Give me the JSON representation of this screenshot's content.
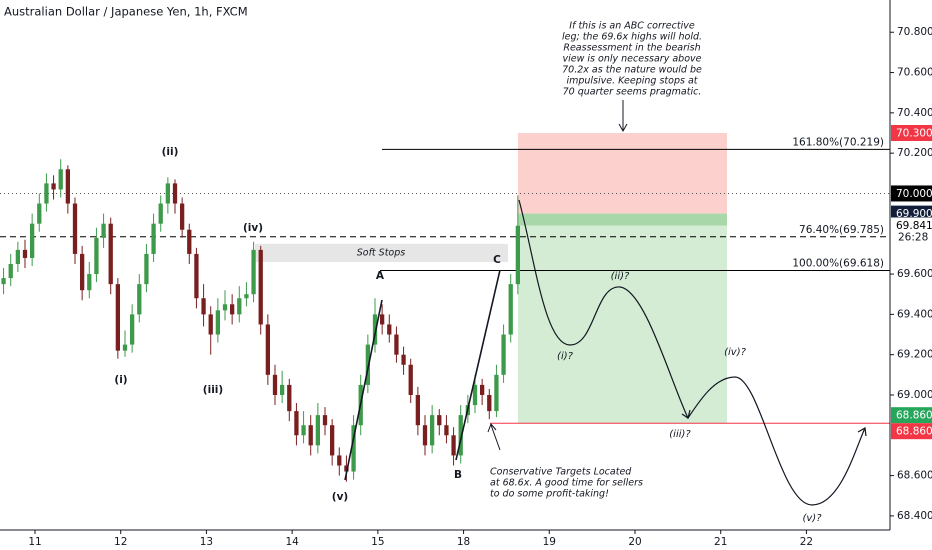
{
  "chart_data": {
    "type": "candlestick",
    "title": "Australian Dollar / Japanese Yen, 1h, FXCM",
    "up_color": "#3d9a4a",
    "down_color": "#7a1f1f",
    "grid": false,
    "xlim": [
      -0.5,
      124.1
    ],
    "ylim": [
      68.33,
      70.96
    ],
    "xticks": [
      {
        "value": 4.4,
        "label": "11"
      },
      {
        "value": 16.4,
        "label": "12"
      },
      {
        "value": 28.4,
        "label": "13"
      },
      {
        "value": 40.4,
        "label": "14"
      },
      {
        "value": 52.4,
        "label": "15"
      },
      {
        "value": 64.4,
        "label": "18"
      },
      {
        "value": 76.4,
        "label": "19"
      },
      {
        "value": 88.4,
        "label": "20"
      },
      {
        "value": 100.4,
        "label": "21"
      },
      {
        "value": 112.4,
        "label": "22"
      }
    ],
    "yticks": [
      {
        "value": 70.8,
        "label": "70.800"
      },
      {
        "value": 70.6,
        "label": "70.600"
      },
      {
        "value": 70.4,
        "label": "70.400"
      },
      {
        "value": 70.2,
        "label": "70.200"
      },
      {
        "value": 69.6,
        "label": "69.600"
      },
      {
        "value": 69.4,
        "label": "69.400"
      },
      {
        "value": 69.2,
        "label": "69.200"
      },
      {
        "value": 69.0,
        "label": "69.000"
      },
      {
        "value": 68.6,
        "label": "68.600"
      },
      {
        "value": 68.4,
        "label": "68.400"
      }
    ],
    "candles": {
      "open": [
        69.55,
        69.58,
        69.65,
        69.72,
        69.68,
        69.85,
        69.95,
        70.05,
        70.02,
        70.12,
        69.95,
        69.7,
        69.52,
        69.6,
        69.78,
        69.85,
        69.55,
        69.22,
        69.25,
        69.4,
        69.55,
        69.7,
        69.85,
        69.95,
        70.05,
        69.95,
        69.82,
        69.7,
        69.48,
        69.4,
        69.3,
        69.42,
        69.45,
        69.4,
        69.48,
        69.5,
        69.72,
        69.35,
        69.1,
        69.0,
        69.05,
        68.92,
        68.8,
        68.85,
        68.75,
        68.9,
        68.85,
        68.7,
        68.65,
        68.62,
        68.85,
        69.05,
        69.25,
        69.4,
        69.35,
        69.3,
        69.2,
        69.15,
        69.0,
        68.85,
        68.75,
        68.9,
        68.85,
        68.8,
        68.7,
        68.9,
        68.95,
        69.05,
        69.0,
        68.92,
        69.1,
        69.3,
        69.55
      ],
      "high": [
        69.63,
        69.7,
        69.76,
        69.77,
        69.9,
        70.0,
        70.1,
        70.09,
        70.17,
        70.14,
        69.98,
        69.74,
        69.66,
        69.83,
        69.9,
        69.88,
        69.58,
        69.32,
        69.45,
        69.6,
        69.75,
        69.9,
        69.99,
        70.08,
        70.07,
        69.98,
        69.85,
        69.73,
        69.55,
        69.44,
        69.48,
        69.52,
        69.5,
        69.54,
        69.56,
        69.76,
        69.74,
        69.4,
        69.15,
        69.12,
        69.08,
        68.96,
        68.92,
        68.9,
        68.96,
        68.94,
        68.88,
        68.74,
        68.7,
        68.9,
        69.1,
        69.3,
        69.48,
        69.45,
        69.4,
        69.34,
        69.24,
        69.18,
        69.04,
        68.9,
        68.95,
        68.93,
        68.9,
        68.84,
        68.95,
        69.0,
        69.1,
        69.08,
        69.03,
        69.15,
        69.35,
        69.6,
        69.99
      ],
      "low": [
        69.5,
        69.54,
        69.61,
        69.63,
        69.64,
        69.81,
        69.91,
        69.97,
        69.98,
        69.9,
        69.65,
        69.47,
        69.48,
        69.56,
        69.73,
        69.5,
        69.18,
        69.19,
        69.21,
        69.36,
        69.51,
        69.66,
        69.81,
        69.9,
        69.9,
        69.78,
        69.65,
        69.43,
        69.34,
        69.2,
        69.26,
        69.37,
        69.35,
        69.36,
        69.44,
        69.46,
        69.3,
        69.05,
        68.95,
        68.96,
        68.87,
        68.75,
        68.76,
        68.7,
        68.71,
        68.8,
        68.65,
        68.6,
        68.57,
        68.58,
        68.8,
        69.01,
        69.21,
        69.3,
        69.26,
        69.16,
        69.1,
        68.96,
        68.8,
        68.7,
        68.71,
        68.8,
        68.76,
        68.65,
        68.66,
        68.86,
        68.91,
        68.95,
        68.88,
        68.89,
        69.06,
        69.26,
        69.5
      ],
      "close": [
        69.58,
        69.65,
        69.72,
        69.68,
        69.85,
        69.95,
        70.05,
        70.02,
        70.12,
        69.95,
        69.7,
        69.52,
        69.6,
        69.78,
        69.85,
        69.55,
        69.22,
        69.25,
        69.4,
        69.55,
        69.7,
        69.85,
        69.95,
        70.05,
        69.95,
        69.82,
        69.7,
        69.48,
        69.4,
        69.3,
        69.42,
        69.45,
        69.4,
        69.48,
        69.5,
        69.72,
        69.35,
        69.1,
        69.0,
        69.05,
        68.92,
        68.8,
        68.85,
        68.75,
        68.9,
        68.85,
        68.7,
        68.65,
        68.62,
        68.85,
        69.05,
        69.25,
        69.4,
        69.35,
        69.3,
        69.2,
        69.15,
        69.0,
        68.85,
        68.75,
        68.9,
        68.85,
        68.8,
        68.7,
        68.9,
        68.95,
        69.05,
        69.0,
        68.92,
        69.1,
        69.3,
        69.55,
        69.84
      ]
    },
    "lines": [
      {
        "value": 70.219,
        "label": "161.80%(70.219)",
        "style": "solid",
        "color": "#000000"
      },
      {
        "value": 69.785,
        "label": "76.40%(69.785)",
        "style": "dashed",
        "color": "#000000"
      },
      {
        "value": 69.618,
        "label": "100.00%(69.618)",
        "style": "solid",
        "color": "#000000"
      },
      {
        "value": 70.0,
        "style": "dotted",
        "color": "#555555"
      },
      {
        "value": 68.86,
        "style": "solid",
        "color": "#f23645"
      }
    ],
    "position": {
      "stop": 70.3,
      "entry": 69.9,
      "target": 68.86,
      "current": 69.841
    },
    "soft_stops": {
      "label": "Soft Stops",
      "top": 69.75,
      "bottom": 69.66
    },
    "badges": [
      {
        "value": 70.3,
        "label": "70.300",
        "color": "#f23645",
        "text_color": "#ffffff"
      },
      {
        "value": 70.0,
        "label": "70.000",
        "color": "#000000",
        "text_color": "#ffffff"
      },
      {
        "value": 69.9,
        "label": "69.900",
        "color": "#131f3a",
        "text_color": "#ffffff"
      },
      {
        "value": 69.841,
        "label": "69.841",
        "color": "#ffffff",
        "text_color": "#000000"
      },
      {
        "value": 68.86,
        "label": "68.860",
        "color": "#26a65b",
        "text_color": "#ffffff"
      },
      {
        "value": 68.86,
        "label": "68.860",
        "color": "#f23645",
        "text_color": "#ffffff"
      }
    ],
    "countdown": "26:28",
    "wave_labels": [
      "(ii)",
      "(i)",
      "(iv)",
      "(iii)",
      "(v)",
      "A",
      "B",
      "C",
      "(i)?",
      "(ii)?",
      "(iii)?",
      "(iv)?",
      "(v)?"
    ],
    "note_top": [
      "If this is an ABC corrective",
      "leg; the 69.6x highs will hold.",
      "Reassessment in the bearish",
      "view is only necessary above",
      "70.2x as the nature would be",
      "impulsive. Keeping stops at",
      "70 quarter seems pragmatic."
    ],
    "note_bottom": [
      "Conservative Targets Located",
      "at 68.6x. A good time for sellers",
      "to do some profit-taking!"
    ]
  }
}
